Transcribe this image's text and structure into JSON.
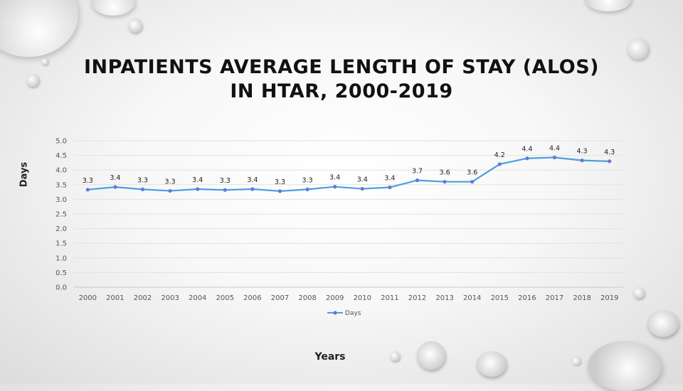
{
  "chart_data": {
    "type": "line",
    "title": "INPATIENTS AVERAGE LENGTH OF STAY (ALOS) IN HTAR, 2000-2019",
    "title_lines": [
      "INPATIENTS AVERAGE LENGTH OF STAY (ALOS)",
      "IN HTAR, 2000-2019"
    ],
    "xlabel": "Years",
    "ylabel": "Days",
    "ylim": [
      0,
      5
    ],
    "yticks": [
      "0.0",
      "0.5",
      "1.0",
      "1.5",
      "2.0",
      "2.5",
      "3.0",
      "3.5",
      "4.0",
      "4.5",
      "5.0"
    ],
    "categories": [
      "2000",
      "2001",
      "2002",
      "2003",
      "2004",
      "2005",
      "2006",
      "2007",
      "2008",
      "2009",
      "2010",
      "2011",
      "2012",
      "2013",
      "2014",
      "2015",
      "2016",
      "2017",
      "2018",
      "2019"
    ],
    "series": [
      {
        "name": "Days",
        "values": [
          3.33,
          3.42,
          3.34,
          3.29,
          3.35,
          3.32,
          3.35,
          3.28,
          3.34,
          3.43,
          3.36,
          3.41,
          3.65,
          3.6,
          3.6,
          4.2,
          4.4,
          4.43,
          4.33,
          4.3
        ],
        "labels": [
          "3.3",
          "3.4",
          "3.3",
          "3.3",
          "3.4",
          "3.3",
          "3.4",
          "3.3",
          "3.3",
          "3.4",
          "3.4",
          "3.4",
          "3.7",
          "3.6",
          "3.6",
          "4.2",
          "4.4",
          "4.4",
          "4.3",
          "4.3"
        ],
        "color": "#4a9fe0"
      }
    ],
    "grid": true,
    "legend": "bottom"
  }
}
